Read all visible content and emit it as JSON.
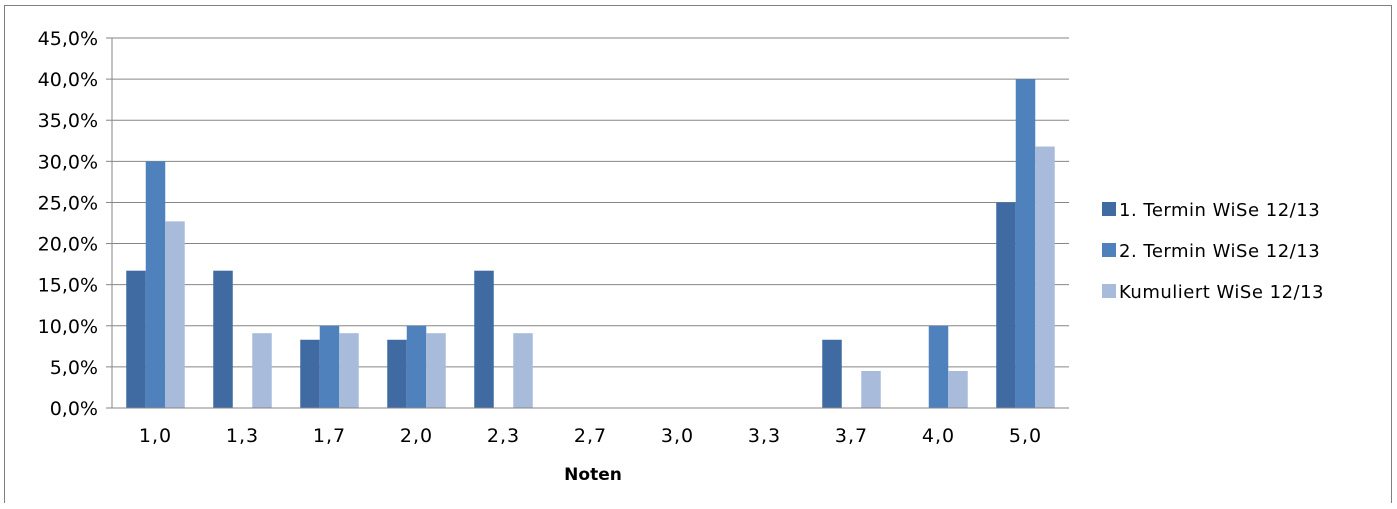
{
  "chart_data": {
    "type": "bar",
    "title": "",
    "xlabel": "Noten",
    "ylabel": "",
    "ylim": [
      0,
      45
    ],
    "yticks": [
      "0,0%",
      "5,0%",
      "10,0%",
      "15,0%",
      "20,0%",
      "25,0%",
      "30,0%",
      "35,0%",
      "40,0%",
      "45,0%"
    ],
    "categories": [
      "1,0",
      "1,3",
      "1,7",
      "2,0",
      "2,3",
      "2,7",
      "3,0",
      "3,3",
      "3,7",
      "4,0",
      "5,0"
    ],
    "series": [
      {
        "name": "1. Termin WiSe 12/13",
        "color": "#3f6aa2",
        "values": [
          16.7,
          16.7,
          8.3,
          8.3,
          16.7,
          0,
          0,
          0,
          8.3,
          0,
          25.0
        ]
      },
      {
        "name": "2. Termin WiSe 12/13",
        "color": "#4f81bd",
        "values": [
          30.0,
          0,
          10.0,
          10.0,
          0,
          0,
          0,
          0,
          0,
          10.0,
          40.0
        ]
      },
      {
        "name": "Kumuliert WiSe 12/13",
        "color": "#a9bbdb",
        "values": [
          22.7,
          9.1,
          9.1,
          9.1,
          9.1,
          0,
          0,
          0,
          4.5,
          4.5,
          31.8
        ]
      }
    ],
    "grid": true,
    "legend": "right"
  }
}
